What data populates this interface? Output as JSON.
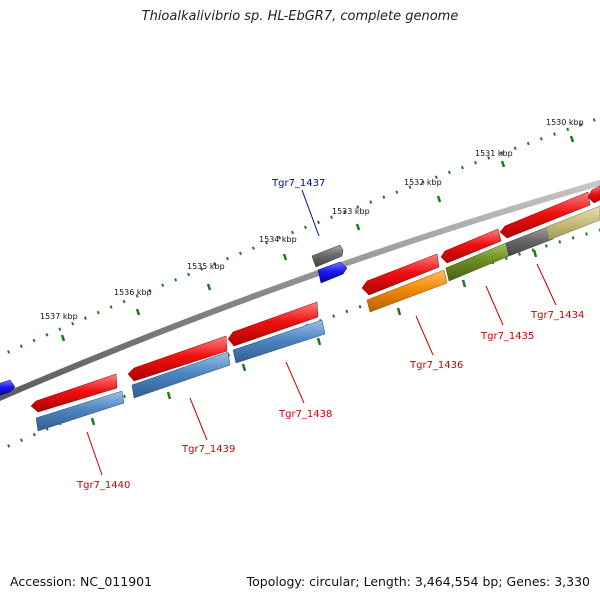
{
  "title": "Thioalkalivibrio sp. HL-EbGR7, complete genome",
  "footer": {
    "accession": "Accession: NC_011901",
    "summary": "Topology: circular; Length: 3,464,554 bp; Genes: 3,330"
  },
  "colors": {
    "backbone": "#8a8a8a",
    "cds": "#ee1111",
    "tick": "#1f7a1f",
    "label_red": "#cc0000",
    "label_blue": "#0000cc",
    "gray_feature": "#6b6b6b",
    "blue_feature": "#1a1aee",
    "steelblue_feature": "#4f86c0",
    "orange_feature": "#f28a0a",
    "olive_feature": "#6b8e23",
    "khaki_feature": "#c8c080"
  },
  "scale_labels": [
    "1530 kbp",
    "1531 kbp",
    "1532 kbp",
    "1533 kbp",
    "1534 kbp",
    "1535 kbp",
    "1536 kbp",
    "1537 kbp"
  ],
  "gene_labels": [
    {
      "name": "Tgr7_1437",
      "color": "blue"
    },
    {
      "name": "Tgr7_1434",
      "color": "red"
    },
    {
      "name": "Tgr7_1435",
      "color": "red"
    },
    {
      "name": "Tgr7_1436",
      "color": "red"
    },
    {
      "name": "Tgr7_1438",
      "color": "red"
    },
    {
      "name": "Tgr7_1439",
      "color": "red"
    },
    {
      "name": "Tgr7_1440",
      "color": "red"
    }
  ]
}
